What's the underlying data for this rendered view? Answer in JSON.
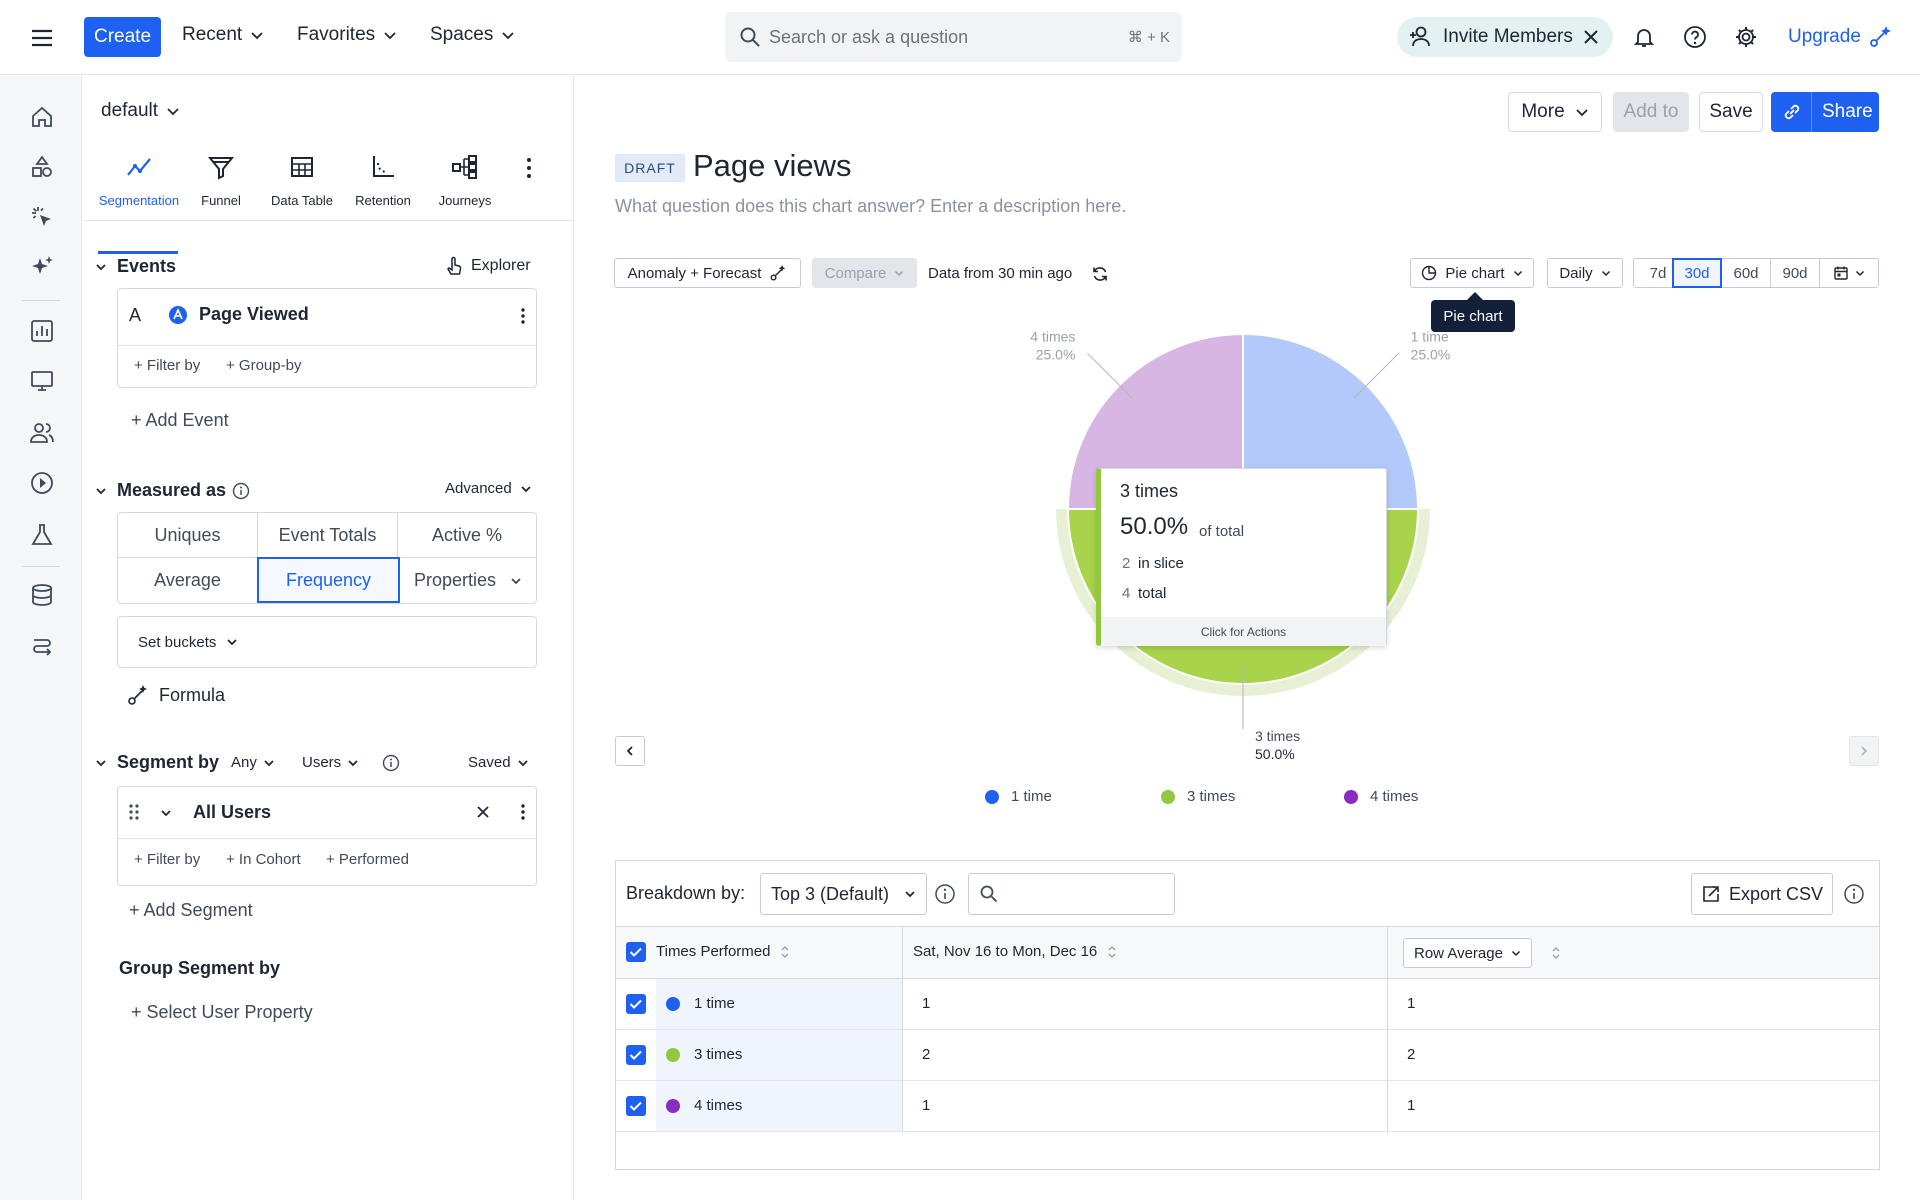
{
  "topbar": {
    "create": "Create",
    "nav": [
      {
        "label": "Recent"
      },
      {
        "label": "Favorites"
      },
      {
        "label": "Spaces"
      }
    ],
    "search_placeholder": "Search or ask a question",
    "shortcut": "⌘ + K",
    "invite": "Invite Members",
    "upgrade": "Upgrade"
  },
  "sidebar": {
    "project": "default",
    "tabs": [
      {
        "label": "Segmentation",
        "icon": "segmentation-icon",
        "active": true
      },
      {
        "label": "Funnel",
        "icon": "funnel-icon"
      },
      {
        "label": "Data Table",
        "icon": "data-table-icon"
      },
      {
        "label": "Retention",
        "icon": "retention-icon"
      },
      {
        "label": "Journeys",
        "icon": "journeys-icon"
      }
    ],
    "events": {
      "title": "Events",
      "explorer": "Explorer",
      "event_letter": "A",
      "event_name": "Page Viewed",
      "filter_by": "+ Filter by",
      "group_by": "+ Group-by",
      "add_event": "+ Add Event"
    },
    "measured": {
      "title": "Measured as",
      "advanced": "Advanced",
      "options": [
        "Uniques",
        "Event Totals",
        "Active %",
        "Average",
        "Frequency",
        "Properties"
      ],
      "selected": "Frequency",
      "set_buckets": "Set buckets",
      "formula": "Formula"
    },
    "segment": {
      "title": "Segment by",
      "any": "Any",
      "users": "Users",
      "saved": "Saved",
      "segment_name": "All Users",
      "filter_by": "+ Filter by",
      "in_cohort": "+ In Cohort",
      "performed": "+ Performed",
      "add_segment": "+ Add Segment"
    },
    "group_segment": {
      "title": "Group Segment by",
      "select": "+ Select User Property"
    }
  },
  "main": {
    "buttons": {
      "more": "More",
      "add_to": "Add to",
      "save": "Save",
      "share": "Share"
    },
    "draft": "DRAFT",
    "title": "Page views",
    "description_placeholder": "What question does this chart answer? Enter a description here.",
    "controls": {
      "anomaly": "Anomaly + Forecast",
      "compare": "Compare",
      "data_from": "Data from 30 min ago",
      "chart_type": "Pie chart",
      "interval": "Daily",
      "ranges": [
        "7d",
        "30d",
        "60d",
        "90d"
      ],
      "range_selected": "30d",
      "tooltip": "Pie chart"
    },
    "hover_tooltip": {
      "title": "3 times",
      "percent": "50.0%",
      "of_total": "of total",
      "in_slice_value": "2",
      "in_slice_label": "in slice",
      "total_value": "4",
      "total_label": "total",
      "footer": "Click for Actions"
    },
    "breakdown": {
      "label": "Breakdown by:",
      "select": "Top 3 (Default)",
      "export": "Export CSV"
    },
    "table": {
      "headers": [
        "Times Performed",
        "Sat, Nov 16 to Mon, Dec 16",
        "Row Average"
      ],
      "rows": [
        {
          "name": "1 time",
          "value": "1",
          "avg": "1",
          "color": "#1e61f0"
        },
        {
          "name": "3 times",
          "value": "2",
          "avg": "2",
          "color": "#92c83e"
        },
        {
          "name": "4 times",
          "value": "1",
          "avg": "1",
          "color": "#8a2bc2"
        }
      ]
    }
  },
  "chart_data": {
    "type": "pie",
    "categories": [
      "1 time",
      "3 times",
      "4 times"
    ],
    "values": [
      1,
      2,
      1
    ],
    "percent_labels": [
      "25.0%",
      "50.0%",
      "25.0%"
    ],
    "slice_colors": [
      "#b3c8fb",
      "#a8d34a",
      "#d7b6e3"
    ],
    "legend_colors": [
      "#1e61f0",
      "#92c83e",
      "#8a2bc2"
    ],
    "legend_placement": "bottom"
  }
}
